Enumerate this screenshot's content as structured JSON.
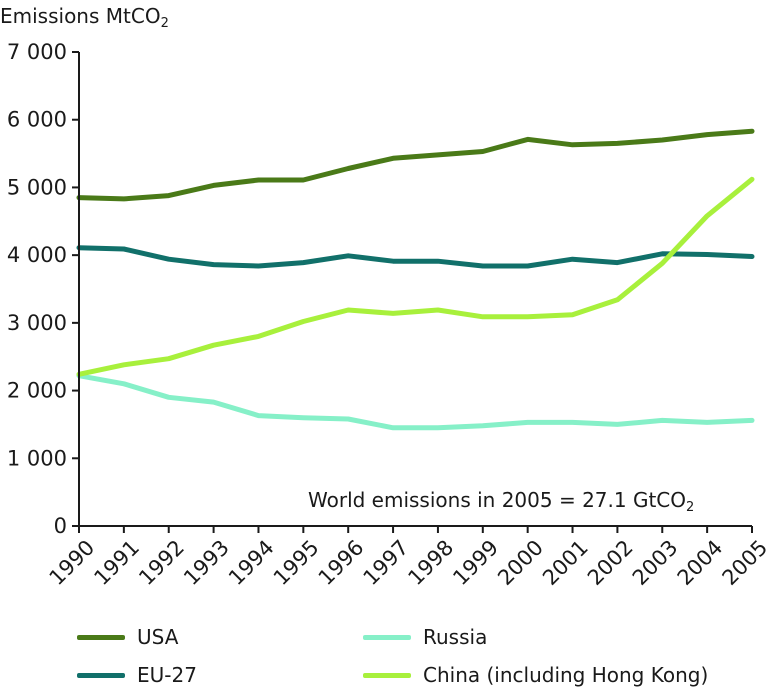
{
  "chart_data": {
    "type": "line",
    "ylabel_main": "Emissions MtCO",
    "ylabel_sub": "2",
    "annotation_main": "World emissions in 2005 = 27.1 GtCO",
    "annotation_sub": "2",
    "x": [
      "1990",
      "1991",
      "1992",
      "1993",
      "1994",
      "1995",
      "1996",
      "1997",
      "1998",
      "1999",
      "2000",
      "2001",
      "2002",
      "2003",
      "2004",
      "2005"
    ],
    "ylim": [
      0,
      7000
    ],
    "yticks": [
      0,
      1000,
      2000,
      3000,
      4000,
      5000,
      6000,
      7000
    ],
    "ytick_labels": [
      "0",
      "1 000",
      "2 000",
      "3 000",
      "4 000",
      "5 000",
      "6 000",
      "7 000"
    ],
    "grid": false,
    "legend_position": "bottom",
    "series": [
      {
        "name": "USA",
        "color": "#4a7a18",
        "values": [
          4850,
          4830,
          4880,
          5030,
          5110,
          5110,
          5280,
          5430,
          5480,
          5530,
          5710,
          5630,
          5650,
          5700,
          5780,
          5830
        ]
      },
      {
        "name": "EU-27",
        "color": "#11706a",
        "values": [
          4110,
          4090,
          3940,
          3860,
          3840,
          3890,
          3990,
          3910,
          3910,
          3840,
          3840,
          3940,
          3890,
          4020,
          4010,
          3980
        ]
      },
      {
        "name": "Russia",
        "color": "#86f0c8",
        "values": [
          2220,
          2100,
          1900,
          1830,
          1630,
          1600,
          1580,
          1450,
          1450,
          1480,
          1530,
          1530,
          1500,
          1560,
          1530,
          1560
        ]
      },
      {
        "name": "China (including Hong Kong)",
        "color": "#a8f03c",
        "values": [
          2240,
          2380,
          2470,
          2670,
          2800,
          3020,
          3190,
          3140,
          3190,
          3090,
          3090,
          3120,
          3340,
          3880,
          4580,
          5120
        ]
      }
    ]
  }
}
